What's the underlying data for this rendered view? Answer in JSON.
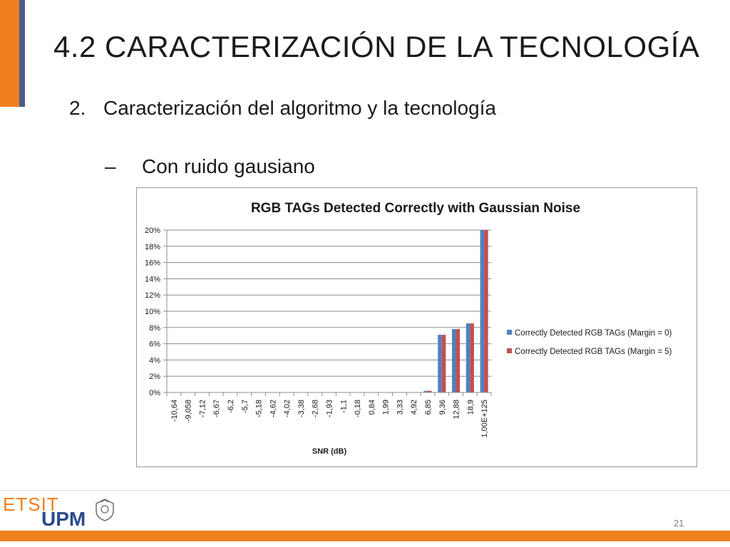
{
  "slide": {
    "title": "4.2   CARACTERIZACIÓN DE LA TECNOLOGÍA",
    "bullet1_number": "2.",
    "bullet1_text": "Caracterización del algoritmo y la tecnología",
    "bullet2_dash": "–",
    "bullet2_text": "Con ruido gausiano",
    "page_number": "21"
  },
  "footer": {
    "logo_etsit": "ETSIT",
    "logo_upm": "UPM",
    "accent_color": "#f07f1e",
    "upm_color": "#2b4a8c"
  },
  "chart_data": {
    "type": "bar",
    "title": "RGB TAGs Detected Correctly with Gaussian Noise",
    "xlabel": "SNR (dB)",
    "ylabel": "",
    "ylim": [
      0,
      0.2
    ],
    "yticks": [
      "0%",
      "2%",
      "4%",
      "6%",
      "8%",
      "10%",
      "12%",
      "14%",
      "16%",
      "18%",
      "20%"
    ],
    "grid": true,
    "legend_position": "right",
    "categories": [
      "-10,64",
      "-9,058",
      "-7,12",
      "-6,67",
      "-6,2",
      "-5,7",
      "-5,18",
      "-4,62",
      "-4,02",
      "-3,38",
      "-2,68",
      "-1,93",
      "-1,1",
      "-0,18",
      "0,84",
      "1,99",
      "3,33",
      "4,92",
      "6,85",
      "9,36",
      "12,88",
      "18,9",
      "1,00E+125"
    ],
    "series": [
      {
        "name": "Correctly Detected RGB TAGs (Margin = 0)",
        "color": "#4f81bd",
        "values": [
          0,
          0,
          0,
          0,
          0,
          0,
          0,
          0,
          0,
          0,
          0,
          0,
          0,
          0,
          0,
          0,
          0,
          0,
          0.002,
          0.071,
          0.078,
          0.085,
          0.2
        ]
      },
      {
        "name": "Correctly Detected RGB TAGs (Margin = 5)",
        "color": "#c0504d",
        "values": [
          0,
          0,
          0,
          0,
          0,
          0,
          0,
          0,
          0,
          0,
          0,
          0,
          0,
          0,
          0,
          0,
          0,
          0,
          0.002,
          0.071,
          0.078,
          0.085,
          0.2
        ]
      }
    ]
  }
}
